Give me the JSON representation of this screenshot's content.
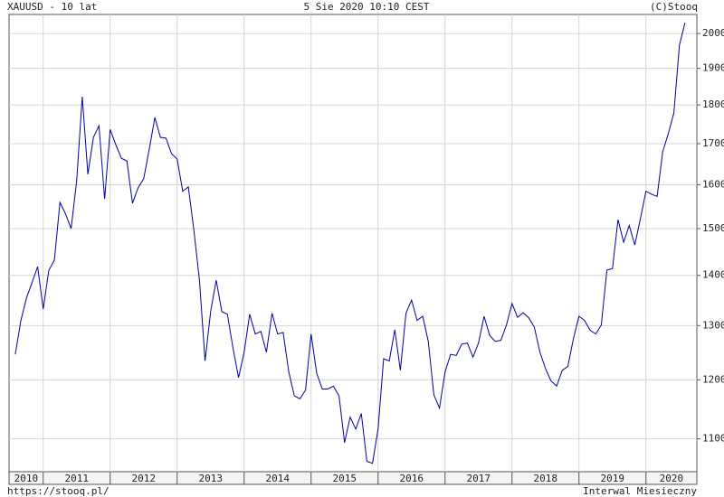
{
  "chart_data": {
    "type": "line",
    "title": "XAUUSD - 10 lat",
    "subtitle": "5 Sie 2020 10:10 CEST",
    "copyright": "(C)Stooq",
    "source": "https://stooq.pl/",
    "interval": "Interwal Miesieczny",
    "color": "#0000a0",
    "log_scale": true,
    "grid": true,
    "x": [
      2010.583,
      2010.667,
      2010.75,
      2010.833,
      2010.917,
      2011,
      2011.083,
      2011.167,
      2011.25,
      2011.333,
      2011.417,
      2011.5,
      2011.583,
      2011.667,
      2011.75,
      2011.833,
      2011.917,
      2012,
      2012.083,
      2012.167,
      2012.25,
      2012.333,
      2012.417,
      2012.5,
      2012.583,
      2012.667,
      2012.75,
      2012.833,
      2012.917,
      2013,
      2013.083,
      2013.167,
      2013.25,
      2013.333,
      2013.417,
      2013.5,
      2013.583,
      2013.667,
      2013.75,
      2013.833,
      2013.917,
      2014,
      2014.083,
      2014.167,
      2014.25,
      2014.333,
      2014.417,
      2014.5,
      2014.583,
      2014.667,
      2014.75,
      2014.833,
      2014.917,
      2015,
      2015.083,
      2015.167,
      2015.25,
      2015.333,
      2015.417,
      2015.5,
      2015.583,
      2015.667,
      2015.75,
      2015.833,
      2015.917,
      2016,
      2016.083,
      2016.167,
      2016.25,
      2016.333,
      2016.417,
      2016.5,
      2016.583,
      2016.667,
      2016.75,
      2016.833,
      2016.917,
      2017,
      2017.083,
      2017.167,
      2017.25,
      2017.333,
      2017.417,
      2017.5,
      2017.583,
      2017.667,
      2017.75,
      2017.833,
      2017.917,
      2018,
      2018.083,
      2018.167,
      2018.25,
      2018.333,
      2018.417,
      2018.5,
      2018.583,
      2018.667,
      2018.75,
      2018.833,
      2018.917,
      2019,
      2019.083,
      2019.167,
      2019.25,
      2019.333,
      2019.417,
      2019.5,
      2019.583,
      2019.667,
      2019.75,
      2019.833,
      2019.917,
      2020,
      2020.083,
      2020.167,
      2020.25,
      2020.333,
      2020.417,
      2020.5,
      2020.583
    ],
    "values": [
      1246,
      1310,
      1354,
      1385,
      1418,
      1332,
      1410,
      1432,
      1559,
      1533,
      1500,
      1610,
      1822,
      1625,
      1716,
      1746,
      1567,
      1736,
      1698,
      1664,
      1657,
      1557,
      1593,
      1614,
      1686,
      1767,
      1716,
      1714,
      1675,
      1662,
      1585,
      1595,
      1496,
      1390,
      1234,
      1327,
      1390,
      1327,
      1322,
      1258,
      1204,
      1250,
      1322,
      1284,
      1289,
      1250,
      1324,
      1284,
      1287,
      1214,
      1172,
      1167,
      1182,
      1284,
      1212,
      1184,
      1184,
      1189,
      1172,
      1094,
      1136,
      1116,
      1142,
      1064,
      1061,
      1116,
      1238,
      1234,
      1292,
      1217,
      1324,
      1350,
      1310,
      1318,
      1270,
      1174,
      1151,
      1214,
      1246,
      1244,
      1265,
      1267,
      1241,
      1267,
      1318,
      1281,
      1270,
      1272,
      1301,
      1343,
      1316,
      1325,
      1315,
      1297,
      1250,
      1220,
      1198,
      1189,
      1217,
      1224,
      1275,
      1318,
      1310,
      1291,
      1284,
      1301,
      1411,
      1414,
      1520,
      1470,
      1507,
      1464,
      1522,
      1585,
      1578,
      1573,
      1680,
      1725,
      1779,
      1966,
      2032
    ],
    "xlim": [
      2010.49,
      2020.76
    ],
    "xticks": [
      {
        "value": 2010,
        "label": "2010"
      },
      {
        "value": 2011,
        "label": "2011"
      },
      {
        "value": 2012,
        "label": "2012"
      },
      {
        "value": 2013,
        "label": "2013"
      },
      {
        "value": 2014,
        "label": "2014"
      },
      {
        "value": 2015,
        "label": "2015"
      },
      {
        "value": 2016,
        "label": "2016"
      },
      {
        "value": 2017,
        "label": "2017"
      },
      {
        "value": 2018,
        "label": "2018"
      },
      {
        "value": 2019,
        "label": "2019"
      },
      {
        "value": 2020,
        "label": "2020"
      }
    ],
    "ylim": [
      1048,
      2057
    ],
    "yticks": [
      1100,
      1200,
      1300,
      1400,
      1500,
      1600,
      1700,
      1800,
      1900,
      2000
    ]
  }
}
